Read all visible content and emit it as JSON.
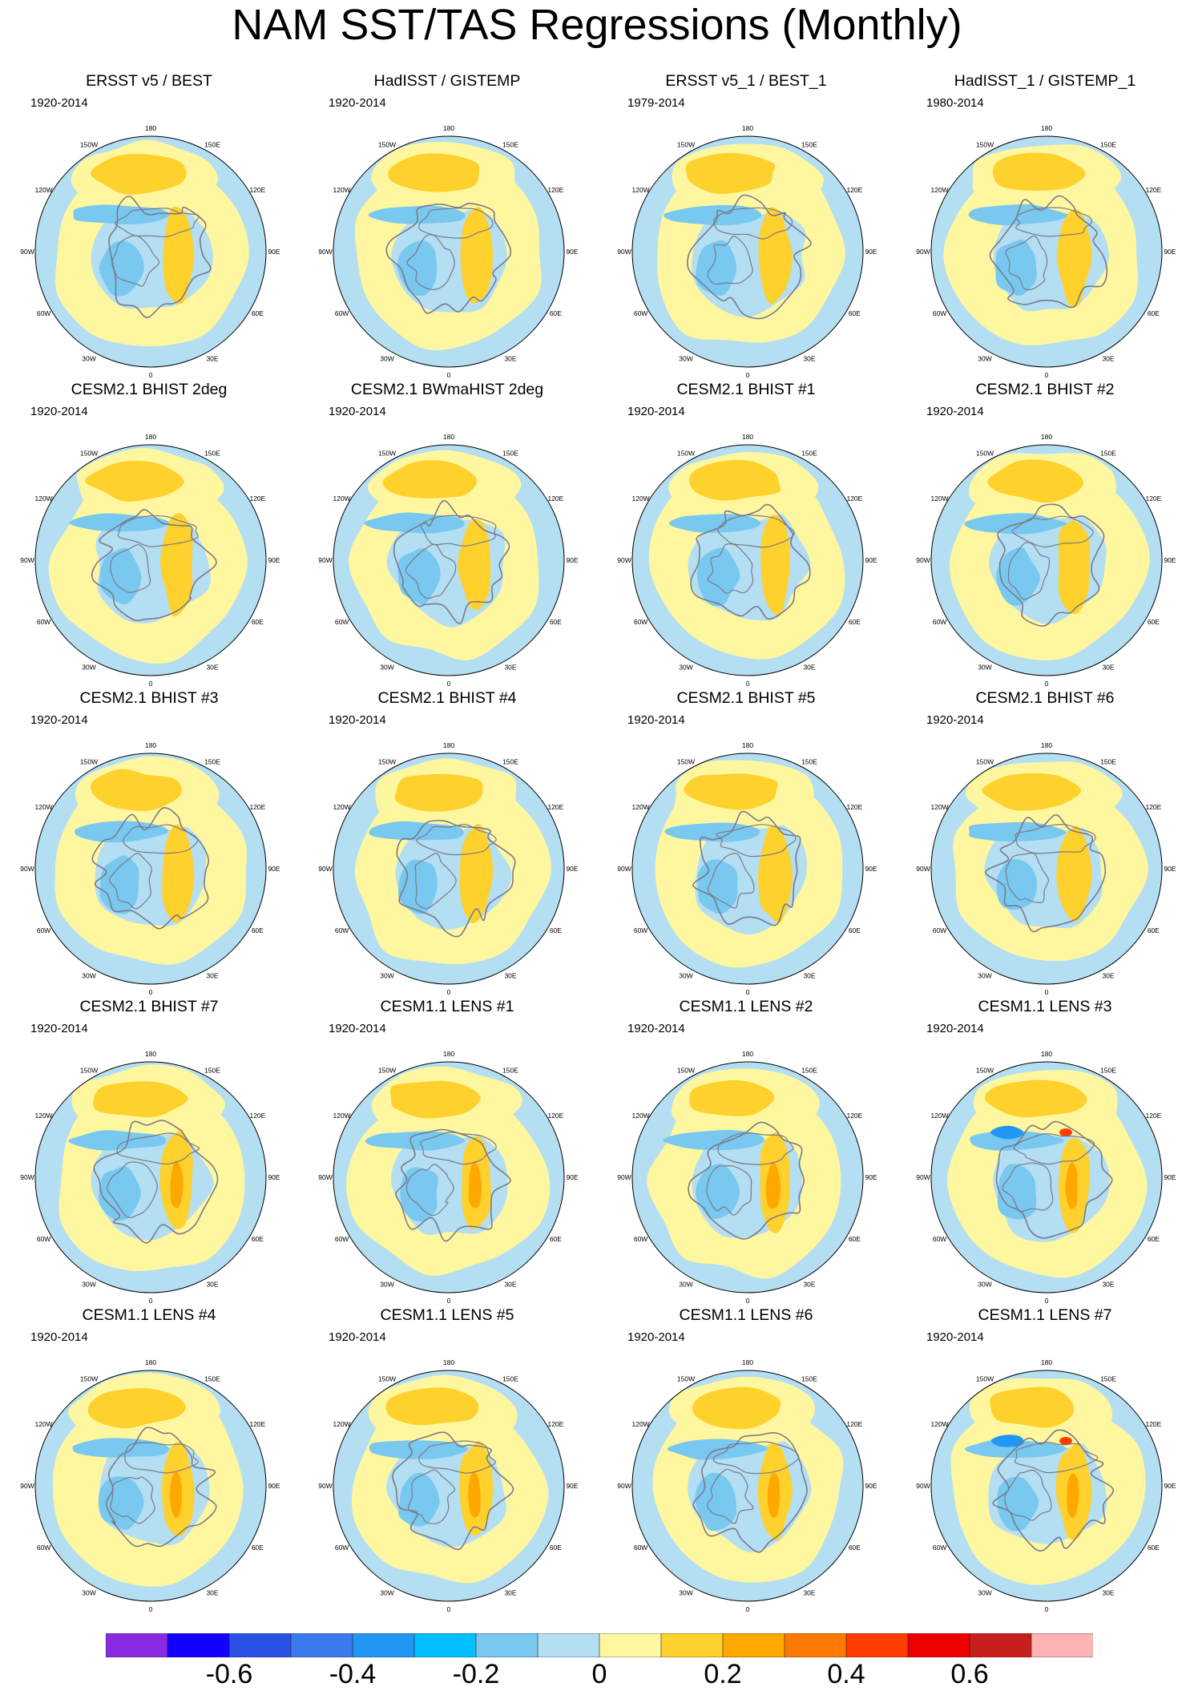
{
  "title": "NAM SST/TAS Regressions (Monthly)",
  "longitude_labels": [
    "180",
    "150E",
    "120E",
    "90E",
    "60E",
    "30E",
    "0",
    "30W",
    "60W",
    "90W",
    "120W",
    "150W"
  ],
  "panels": [
    {
      "title": "ERSST v5 / BEST",
      "period": "1920-2014"
    },
    {
      "title": "HadISST / GISTEMP",
      "period": "1920-2014"
    },
    {
      "title": "ERSST v5_1 / BEST_1",
      "period": "1979-2014"
    },
    {
      "title": "HadISST_1 / GISTEMP_1",
      "period": "1980-2014"
    },
    {
      "title": "CESM2.1 BHIST 2deg",
      "period": "1920-2014"
    },
    {
      "title": "CESM2.1 BWmaHIST 2deg",
      "period": "1920-2014"
    },
    {
      "title": "CESM2.1 BHIST #1",
      "period": "1920-2014"
    },
    {
      "title": "CESM2.1 BHIST #2",
      "period": "1920-2014"
    },
    {
      "title": "CESM2.1 BHIST #3",
      "period": "1920-2014"
    },
    {
      "title": "CESM2.1 BHIST #4",
      "period": "1920-2014"
    },
    {
      "title": "CESM2.1 BHIST #5",
      "period": "1920-2014"
    },
    {
      "title": "CESM2.1 BHIST #6",
      "period": "1920-2014"
    },
    {
      "title": "CESM2.1 BHIST #7",
      "period": "1920-2014"
    },
    {
      "title": "CESM1.1 LENS #1",
      "period": "1920-2014"
    },
    {
      "title": "CESM1.1 LENS #2",
      "period": "1920-2014"
    },
    {
      "title": "CESM1.1 LENS #3",
      "period": "1920-2014"
    },
    {
      "title": "CESM1.1 LENS #4",
      "period": "1920-2014"
    },
    {
      "title": "CESM1.1 LENS #5",
      "period": "1920-2014"
    },
    {
      "title": "CESM1.1 LENS #6",
      "period": "1920-2014"
    },
    {
      "title": "CESM1.1 LENS #7",
      "period": "1920-2014"
    }
  ],
  "colorbar": {
    "colors": [
      "#8a2be2",
      "#1400ff",
      "#2a52e6",
      "#3a7aec",
      "#2196f3",
      "#00c0ff",
      "#78c8f0",
      "#b4def2",
      "#fff7a0",
      "#ffd12c",
      "#ffa800",
      "#ff7800",
      "#ff3c00",
      "#ee0000",
      "#c81e1e",
      "#ffb4b4"
    ],
    "tick_labels": [
      "-0.6",
      "-0.4",
      "-0.2",
      "0",
      "0.2",
      "0.4",
      "0.6"
    ]
  },
  "map_colors": {
    "base": "#b4def2",
    "positive_light": "#fff7a0",
    "positive_mid": "#ffd12c",
    "positive_strong": "#ffa800",
    "positive_max": "#ff3c00",
    "negative_mid": "#78c8f0",
    "negative_strong": "#2196f3",
    "coastline": "#7a7a88"
  }
}
